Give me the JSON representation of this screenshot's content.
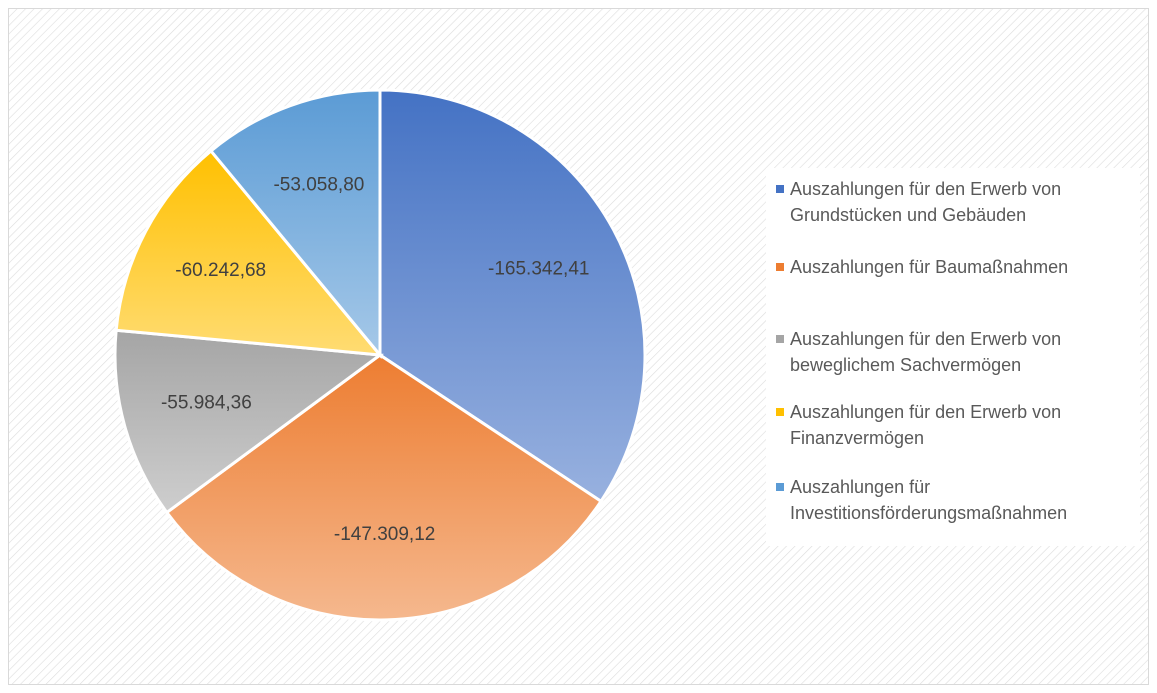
{
  "chart_data": {
    "type": "pie",
    "categories": [
      "Auszahlungen für den Erwerb von Grundstücken und Gebäuden",
      "Auszahlungen für Baumaßnahmen",
      "Auszahlungen für den Erwerb von beweglichem Sachvermögen",
      "Auszahlungen für den Erwerb von Finanzvermögen",
      "Auszahlungen für Investitionsförderungsmaßnahmen"
    ],
    "values": [
      -165342.41,
      -147309.12,
      -55984.36,
      -60242.68,
      -53058.8
    ],
    "value_labels": [
      "-165.342,41",
      "-147.309,12",
      "-55.984,36",
      "-60.242,68",
      "-53.058,80"
    ],
    "colors": [
      "#4472c4",
      "#ed7d31",
      "#a5a5a5",
      "#ffc000",
      "#5b9bd5"
    ],
    "legend": "right"
  }
}
